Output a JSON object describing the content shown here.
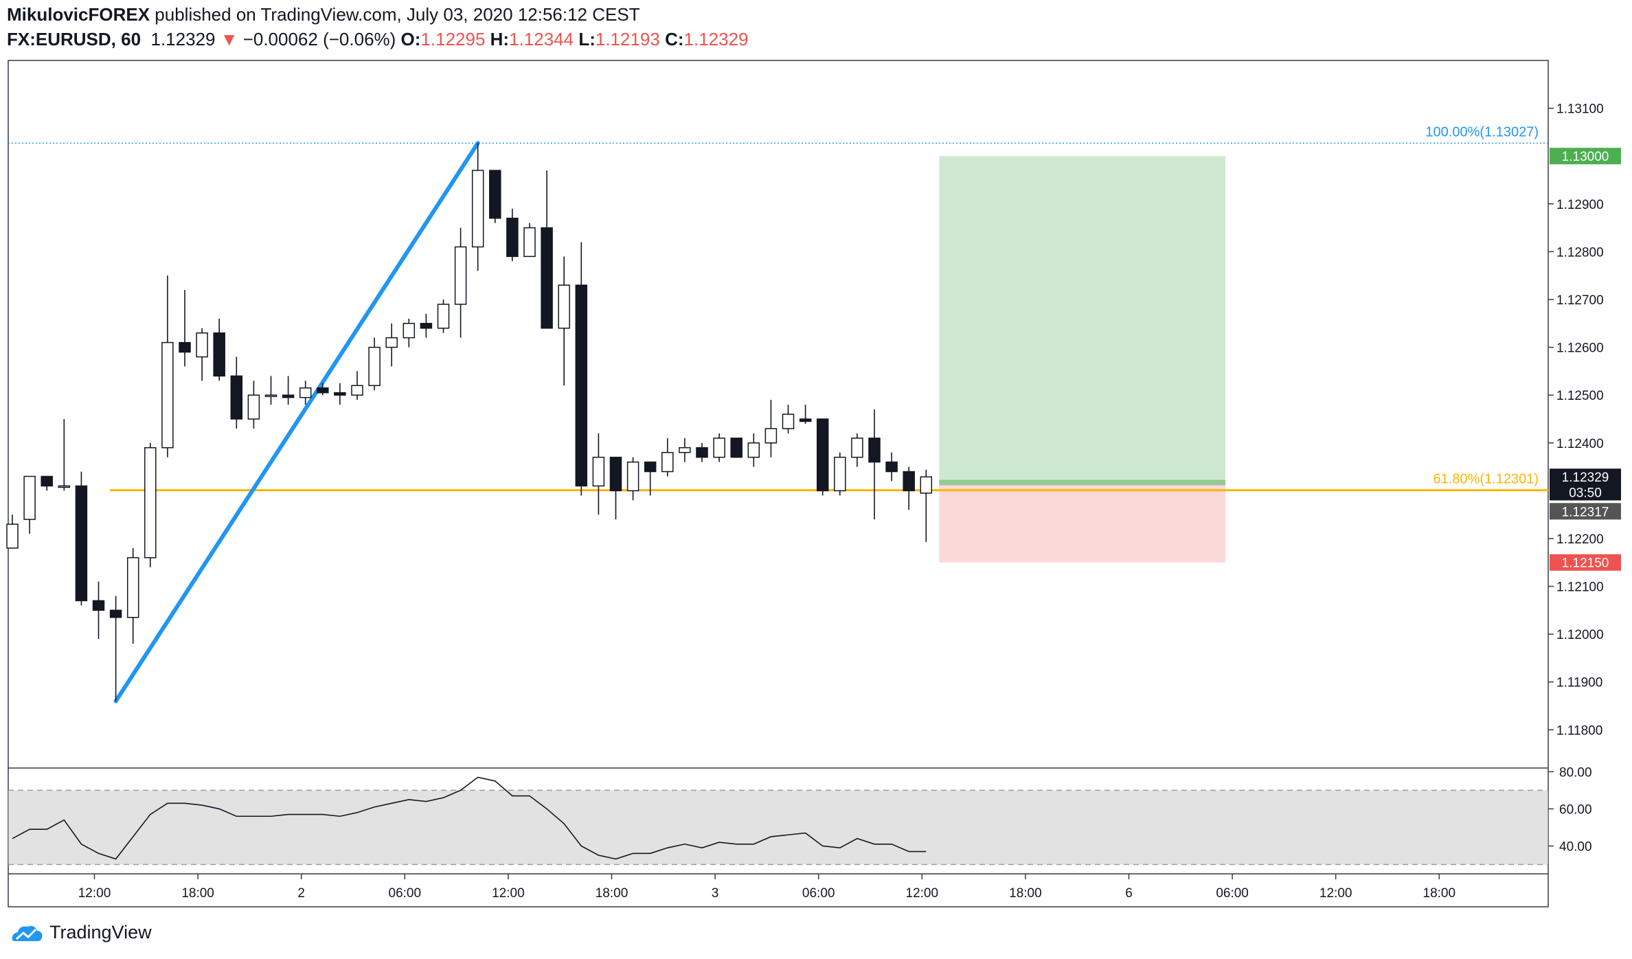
{
  "header": {
    "author": "MikulovicFOREX",
    "published": "published on TradingView.com, July 03, 2020 12:56:12 CEST",
    "symbol": "FX:EURUSD, 60",
    "last": "1.12329",
    "arrow": "▼",
    "change": "−0.00062 (−0.06%)",
    "open_label": "O:",
    "open": "1.12295",
    "high_label": "H:",
    "high": "1.12344",
    "low_label": "L:",
    "low": "1.12193",
    "close_label": "C:",
    "close": "1.12329"
  },
  "footer": {
    "brand": "TradingView"
  },
  "colors": {
    "bull_fill": "#ffffff",
    "bear_fill": "#131722",
    "fib": "#ffb300",
    "trend": "#2196f3",
    "target": "#4caf50",
    "stop": "#ef5350"
  },
  "chart_data": {
    "type": "candlestick",
    "symbol": "FX:EURUSD",
    "timeframe": "60",
    "ylim": [
      1.1172,
      1.132
    ],
    "y_ticks": [
      "1.13100",
      "1.12900",
      "1.12800",
      "1.12700",
      "1.12600",
      "1.12500",
      "1.12400",
      "1.12200",
      "1.12100",
      "1.12000",
      "1.11900",
      "1.11800"
    ],
    "x_ticks": [
      "12:00",
      "18:00",
      "2",
      "06:00",
      "12:00",
      "18:00",
      "3",
      "06:00",
      "12:00",
      "18:00",
      "6",
      "06:00",
      "12:00",
      "18:00"
    ],
    "x_tick_bars": [
      5,
      11,
      17,
      23,
      29,
      35,
      41,
      47,
      53,
      59,
      65,
      71,
      77,
      83
    ],
    "candles": [
      {
        "o": 1.1218,
        "h": 1.1225,
        "l": 1.1218,
        "c": 1.1223
      },
      {
        "o": 1.1224,
        "h": 1.1233,
        "l": 1.1221,
        "c": 1.1233
      },
      {
        "o": 1.1233,
        "h": 1.1233,
        "l": 1.123,
        "c": 1.1231
      },
      {
        "o": 1.1231,
        "h": 1.1245,
        "l": 1.123,
        "c": 1.1231
      },
      {
        "o": 1.1231,
        "h": 1.1234,
        "l": 1.1206,
        "c": 1.1207
      },
      {
        "o": 1.1207,
        "h": 1.1211,
        "l": 1.1199,
        "c": 1.1205
      },
      {
        "o": 1.1205,
        "h": 1.1208,
        "l": 1.1186,
        "c": 1.12035
      },
      {
        "o": 1.12035,
        "h": 1.1218,
        "l": 1.1198,
        "c": 1.1216
      },
      {
        "o": 1.1216,
        "h": 1.124,
        "l": 1.1214,
        "c": 1.1239
      },
      {
        "o": 1.1239,
        "h": 1.1275,
        "l": 1.1237,
        "c": 1.1261
      },
      {
        "o": 1.1261,
        "h": 1.1272,
        "l": 1.1256,
        "c": 1.1259
      },
      {
        "o": 1.1258,
        "h": 1.1264,
        "l": 1.1253,
        "c": 1.1263
      },
      {
        "o": 1.1263,
        "h": 1.1266,
        "l": 1.1253,
        "c": 1.1254
      },
      {
        "o": 1.1254,
        "h": 1.1258,
        "l": 1.1243,
        "c": 1.1245
      },
      {
        "o": 1.1245,
        "h": 1.1253,
        "l": 1.1243,
        "c": 1.125
      },
      {
        "o": 1.125,
        "h": 1.1254,
        "l": 1.1248,
        "c": 1.125
      },
      {
        "o": 1.125,
        "h": 1.1254,
        "l": 1.1248,
        "c": 1.12495
      },
      {
        "o": 1.12495,
        "h": 1.1253,
        "l": 1.1248,
        "c": 1.12515
      },
      {
        "o": 1.12515,
        "h": 1.12525,
        "l": 1.125,
        "c": 1.12505
      },
      {
        "o": 1.12505,
        "h": 1.12525,
        "l": 1.1248,
        "c": 1.125
      },
      {
        "o": 1.125,
        "h": 1.1255,
        "l": 1.1249,
        "c": 1.1252
      },
      {
        "o": 1.1252,
        "h": 1.1262,
        "l": 1.1251,
        "c": 1.126
      },
      {
        "o": 1.126,
        "h": 1.1265,
        "l": 1.1256,
        "c": 1.1262
      },
      {
        "o": 1.1262,
        "h": 1.1266,
        "l": 1.126,
        "c": 1.1265
      },
      {
        "o": 1.1265,
        "h": 1.1267,
        "l": 1.1262,
        "c": 1.1264
      },
      {
        "o": 1.1264,
        "h": 1.127,
        "l": 1.1263,
        "c": 1.1269
      },
      {
        "o": 1.1269,
        "h": 1.1285,
        "l": 1.1262,
        "c": 1.1281
      },
      {
        "o": 1.1281,
        "h": 1.13027,
        "l": 1.1276,
        "c": 1.1297
      },
      {
        "o": 1.1297,
        "h": 1.1297,
        "l": 1.1286,
        "c": 1.1287
      },
      {
        "o": 1.1287,
        "h": 1.1289,
        "l": 1.1278,
        "c": 1.1279
      },
      {
        "o": 1.1279,
        "h": 1.1286,
        "l": 1.128,
        "c": 1.1285
      },
      {
        "o": 1.1285,
        "h": 1.1297,
        "l": 1.1264,
        "c": 1.1264
      },
      {
        "o": 1.1264,
        "h": 1.1279,
        "l": 1.1252,
        "c": 1.1273
      },
      {
        "o": 1.1273,
        "h": 1.1282,
        "l": 1.1229,
        "c": 1.1231
      },
      {
        "o": 1.1231,
        "h": 1.1242,
        "l": 1.1225,
        "c": 1.1237
      },
      {
        "o": 1.1237,
        "h": 1.1237,
        "l": 1.1224,
        "c": 1.123
      },
      {
        "o": 1.123,
        "h": 1.1237,
        "l": 1.1228,
        "c": 1.1236
      },
      {
        "o": 1.1236,
        "h": 1.1236,
        "l": 1.1229,
        "c": 1.1234
      },
      {
        "o": 1.1234,
        "h": 1.1241,
        "l": 1.1233,
        "c": 1.1238
      },
      {
        "o": 1.1238,
        "h": 1.1241,
        "l": 1.1236,
        "c": 1.1239
      },
      {
        "o": 1.1239,
        "h": 1.124,
        "l": 1.1236,
        "c": 1.1237
      },
      {
        "o": 1.1237,
        "h": 1.1242,
        "l": 1.1236,
        "c": 1.1241
      },
      {
        "o": 1.1241,
        "h": 1.1241,
        "l": 1.1237,
        "c": 1.1237
      },
      {
        "o": 1.1237,
        "h": 1.1242,
        "l": 1.1235,
        "c": 1.124
      },
      {
        "o": 1.124,
        "h": 1.1249,
        "l": 1.1237,
        "c": 1.1243
      },
      {
        "o": 1.1243,
        "h": 1.1248,
        "l": 1.1242,
        "c": 1.1246
      },
      {
        "o": 1.1245,
        "h": 1.1248,
        "l": 1.1244,
        "c": 1.12445
      },
      {
        "o": 1.1245,
        "h": 1.1245,
        "l": 1.1229,
        "c": 1.123
      },
      {
        "o": 1.123,
        "h": 1.1238,
        "l": 1.1229,
        "c": 1.1237
      },
      {
        "o": 1.1237,
        "h": 1.1242,
        "l": 1.1235,
        "c": 1.1241
      },
      {
        "o": 1.1241,
        "h": 1.1247,
        "l": 1.1224,
        "c": 1.1236
      },
      {
        "o": 1.1236,
        "h": 1.1238,
        "l": 1.1232,
        "c": 1.1234
      },
      {
        "o": 1.1234,
        "h": 1.1235,
        "l": 1.1226,
        "c": 1.123
      },
      {
        "o": 1.12295,
        "h": 1.12344,
        "l": 1.12193,
        "c": 1.12329
      }
    ],
    "trendline": {
      "from_bar": 6,
      "from_price": 1.1186,
      "to_bar": 27,
      "to_price": 1.13027
    },
    "fib_levels": [
      {
        "label": "100.00%(1.13027)",
        "price": 1.13027,
        "color": "#2196f3"
      },
      {
        "label": "61.80%(1.12301)",
        "price": 1.12301,
        "color": "#ffb300"
      }
    ],
    "position": {
      "type": "long",
      "from_bar": 54,
      "to_bar": 70,
      "entry": 1.12317,
      "target": 1.13,
      "stop": 1.1215
    },
    "price_labels": [
      {
        "text": "1.13000",
        "price": 1.13,
        "bg": "#4caf50"
      },
      {
        "text": "1.12329",
        "price": 1.12329,
        "bg": "#131722"
      },
      {
        "text": "03:50",
        "price": 1.12297,
        "bg": "#131722"
      },
      {
        "text": "1.12317",
        "price": 1.12257,
        "bg": "#555555"
      },
      {
        "text": "1.12150",
        "price": 1.1215,
        "bg": "#ef5350"
      }
    ],
    "oscillator": {
      "ylim": [
        25,
        82
      ],
      "ticks": [
        "80.00",
        "60.00",
        "40.00"
      ],
      "band": [
        30,
        70
      ],
      "values": [
        44,
        49,
        49,
        54,
        41,
        36,
        33,
        45,
        57,
        63,
        63,
        62,
        60,
        56,
        56,
        56,
        57,
        57,
        57,
        56,
        58,
        61,
        63,
        65,
        64,
        66,
        70,
        77,
        75,
        67,
        67,
        60,
        52,
        40,
        35,
        33,
        36,
        36,
        39,
        41,
        39,
        42,
        41,
        41,
        45,
        46,
        47,
        40,
        39,
        44,
        41,
        41,
        37,
        37
      ]
    }
  }
}
